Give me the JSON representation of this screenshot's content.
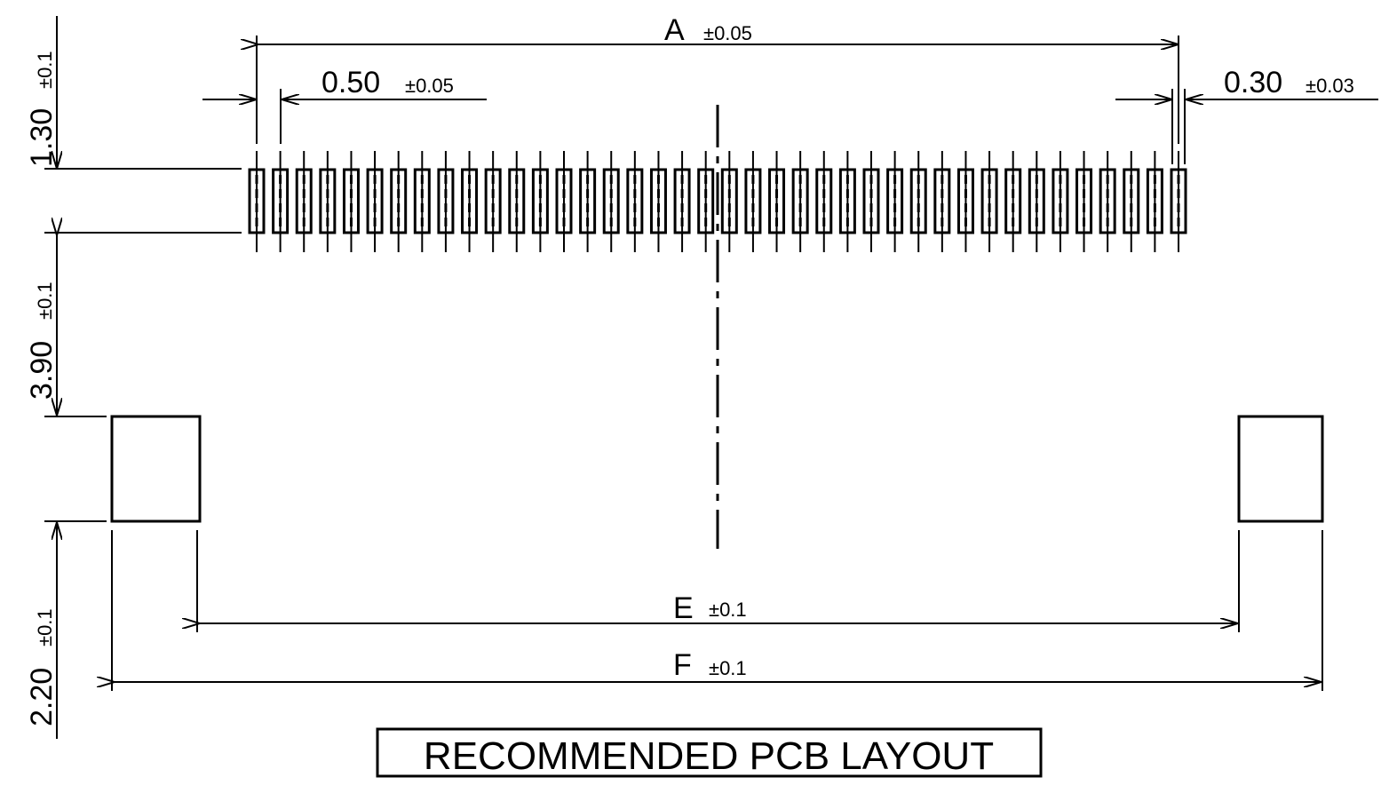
{
  "title": "RECOMMENDED PCB LAYOUT",
  "pad_count": 40,
  "dimensions": {
    "A": {
      "label": "A",
      "tol": "±0.05"
    },
    "pitch": {
      "label": "0.50",
      "tol": "±0.05"
    },
    "pad_width": {
      "label": "0.30",
      "tol": "±0.03"
    },
    "pad_length": {
      "label": "1.30",
      "tol": "±0.1"
    },
    "pad_to_tab": {
      "label": "3.90",
      "tol": "±0.1"
    },
    "tab_height": {
      "label": "2.20",
      "tol": "±0.1"
    },
    "E": {
      "label": "E",
      "tol": "±0.1"
    },
    "F": {
      "label": "F",
      "tol": "±0.1"
    }
  }
}
